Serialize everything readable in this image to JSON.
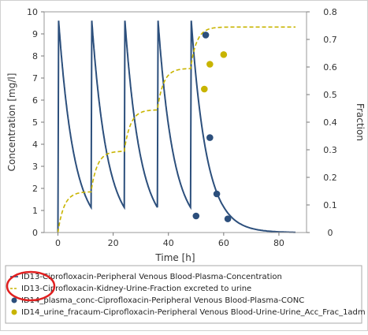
{
  "chart_data": {
    "type": "line",
    "xlabel": "Time [h]",
    "ylabel": "Concentration [mg/l]",
    "y2label": "Fraction",
    "xlim": [
      -5,
      90
    ],
    "ylim": [
      0,
      10
    ],
    "y2lim": [
      0,
      0.8
    ],
    "xticks": [
      "0",
      "20",
      "40",
      "60",
      "80"
    ],
    "yticks": [
      "0",
      "1",
      "2",
      "3",
      "4",
      "5",
      "6",
      "7",
      "8",
      "9",
      "10"
    ],
    "y2ticks": [
      "0",
      "0.1",
      "0.2",
      "0.3",
      "0.4",
      "0.5",
      "0.6",
      "0.7",
      "0.8"
    ],
    "grid": false,
    "legend_position": "bottom",
    "colors": {
      "plasma": "#2c4f7c",
      "urine": "#c8b400",
      "annotation": "#e02020"
    },
    "series": [
      {
        "name": "ID13-Ciprofloxacin-Peripheral Venous Blood-Plasma-Concentration",
        "kind": "line",
        "axis": "left",
        "dose_times": [
          0,
          12,
          24,
          36,
          48
        ],
        "peak": 9.6,
        "trough": 0.0
      },
      {
        "name": "ID13-Ciprofloxacin-Kidney-Urine-Fraction excreted to urine",
        "kind": "dashed-line",
        "axis": "right",
        "dose_times": [
          0,
          12,
          24,
          36,
          48
        ],
        "step_levels": [
          0.148,
          0.295,
          0.445,
          0.595,
          0.745
        ]
      },
      {
        "name": "ID14_plasma_conc-Ciprofloxacin-Peripheral Venous Blood-Plasma-CONC",
        "kind": "markers",
        "axis": "left",
        "x": [
          50.0,
          53.5,
          55.0,
          57.5,
          61.5
        ],
        "y": [
          0.75,
          8.95,
          4.3,
          1.75,
          0.62
        ]
      },
      {
        "name": "ID14_urine_fracaum-Ciprofloxacin-Peripheral Venous Blood-Urine-Urine_Acc_Frac_1adm",
        "kind": "markers",
        "axis": "right",
        "x": [
          53.0,
          55.0,
          60.0
        ],
        "y": [
          0.52,
          0.61,
          0.645
        ]
      }
    ],
    "annotation": {
      "type": "circle",
      "description": "red ellipse highlighting ID13 legend labels"
    }
  }
}
